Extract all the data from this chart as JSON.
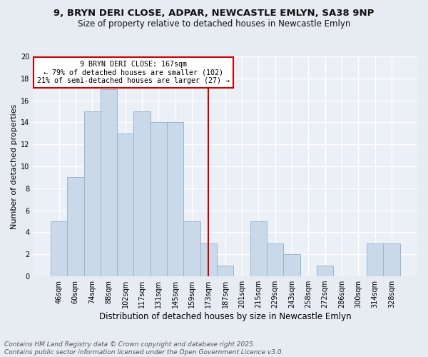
{
  "title_line1": "9, BRYN DERI CLOSE, ADPAR, NEWCASTLE EMLYN, SA38 9NP",
  "title_line2": "Size of property relative to detached houses in Newcastle Emlyn",
  "xlabel": "Distribution of detached houses by size in Newcastle Emlyn",
  "ylabel": "Number of detached properties",
  "bar_labels": [
    "46sqm",
    "60sqm",
    "74sqm",
    "88sqm",
    "102sqm",
    "117sqm",
    "131sqm",
    "145sqm",
    "159sqm",
    "173sqm",
    "187sqm",
    "201sqm",
    "215sqm",
    "229sqm",
    "243sqm",
    "258sqm",
    "272sqm",
    "286sqm",
    "300sqm",
    "314sqm",
    "328sqm"
  ],
  "bar_values": [
    5,
    9,
    15,
    17,
    13,
    15,
    14,
    14,
    5,
    3,
    1,
    0,
    5,
    3,
    2,
    0,
    1,
    0,
    0,
    3,
    3
  ],
  "bar_color": "#c9d9ea",
  "bar_edgecolor": "#9ab4cc",
  "bar_linewidth": 0.7,
  "vline_x_idx": 9,
  "vline_color": "#cc0000",
  "annotation_title": "9 BRYN DERI CLOSE: 167sqm",
  "annotation_line2": "← 79% of detached houses are smaller (102)",
  "annotation_line3": "21% of semi-detached houses are larger (27) →",
  "annotation_box_color": "#cc0000",
  "annotation_fill": "#ffffff",
  "ylim": [
    0,
    20
  ],
  "yticks": [
    0,
    2,
    4,
    6,
    8,
    10,
    12,
    14,
    16,
    18,
    20
  ],
  "footer_line1": "Contains HM Land Registry data © Crown copyright and database right 2025.",
  "footer_line2": "Contains public sector information licensed under the Open Government Licence v3.0.",
  "bg_color": "#e6ecf2",
  "plot_bg_color": "#eaf0f6",
  "grid_color": "#ffffff",
  "title_fontsize": 9.5,
  "subtitle_fontsize": 8.5,
  "ylabel_fontsize": 8,
  "xlabel_fontsize": 8.5,
  "tick_fontsize": 7,
  "footer_fontsize": 6.5
}
